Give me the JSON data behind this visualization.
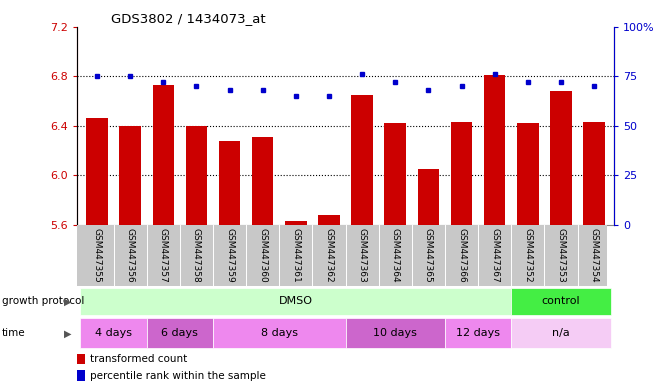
{
  "title": "GDS3802 / 1434073_at",
  "samples": [
    "GSM447355",
    "GSM447356",
    "GSM447357",
    "GSM447358",
    "GSM447359",
    "GSM447360",
    "GSM447361",
    "GSM447362",
    "GSM447363",
    "GSM447364",
    "GSM447365",
    "GSM447366",
    "GSM447367",
    "GSM447352",
    "GSM447353",
    "GSM447354"
  ],
  "red_values": [
    6.46,
    6.4,
    6.73,
    6.4,
    6.28,
    6.31,
    5.63,
    5.68,
    6.65,
    6.42,
    6.05,
    6.43,
    6.81,
    6.42,
    6.68,
    6.43
  ],
  "blue_values": [
    75,
    75,
    72,
    70,
    68,
    68,
    65,
    65,
    76,
    72,
    68,
    70,
    76,
    72,
    72,
    70
  ],
  "ylim_left": [
    5.6,
    7.2
  ],
  "ylim_right": [
    0,
    100
  ],
  "yticks_left": [
    5.6,
    6.0,
    6.4,
    6.8,
    7.2
  ],
  "yticks_right": [
    0,
    25,
    50,
    75,
    100
  ],
  "bar_color": "#cc0000",
  "dot_color": "#0000cc",
  "bg_color": "#ffffff",
  "protocol_label": "growth protocol",
  "time_label": "time",
  "protocol_groups": [
    {
      "label": "DMSO",
      "start": 0,
      "end": 13,
      "color": "#ccffcc"
    },
    {
      "label": "control",
      "start": 13,
      "end": 16,
      "color": "#44ee44"
    }
  ],
  "time_groups": [
    {
      "label": "4 days",
      "start": 0,
      "end": 2,
      "color": "#ee88ee"
    },
    {
      "label": "6 days",
      "start": 2,
      "end": 4,
      "color": "#cc66cc"
    },
    {
      "label": "8 days",
      "start": 4,
      "end": 8,
      "color": "#ee88ee"
    },
    {
      "label": "10 days",
      "start": 8,
      "end": 11,
      "color": "#cc66cc"
    },
    {
      "label": "12 days",
      "start": 11,
      "end": 13,
      "color": "#ee88ee"
    },
    {
      "label": "n/a",
      "start": 13,
      "end": 16,
      "color": "#f5ccf5"
    }
  ],
  "legend_red": "transformed count",
  "legend_blue": "percentile rank within the sample",
  "tick_color_left": "#cc0000",
  "tick_color_right": "#0000cc",
  "xtick_bg": "#c8c8c8",
  "xtick_divider": "#ffffff"
}
